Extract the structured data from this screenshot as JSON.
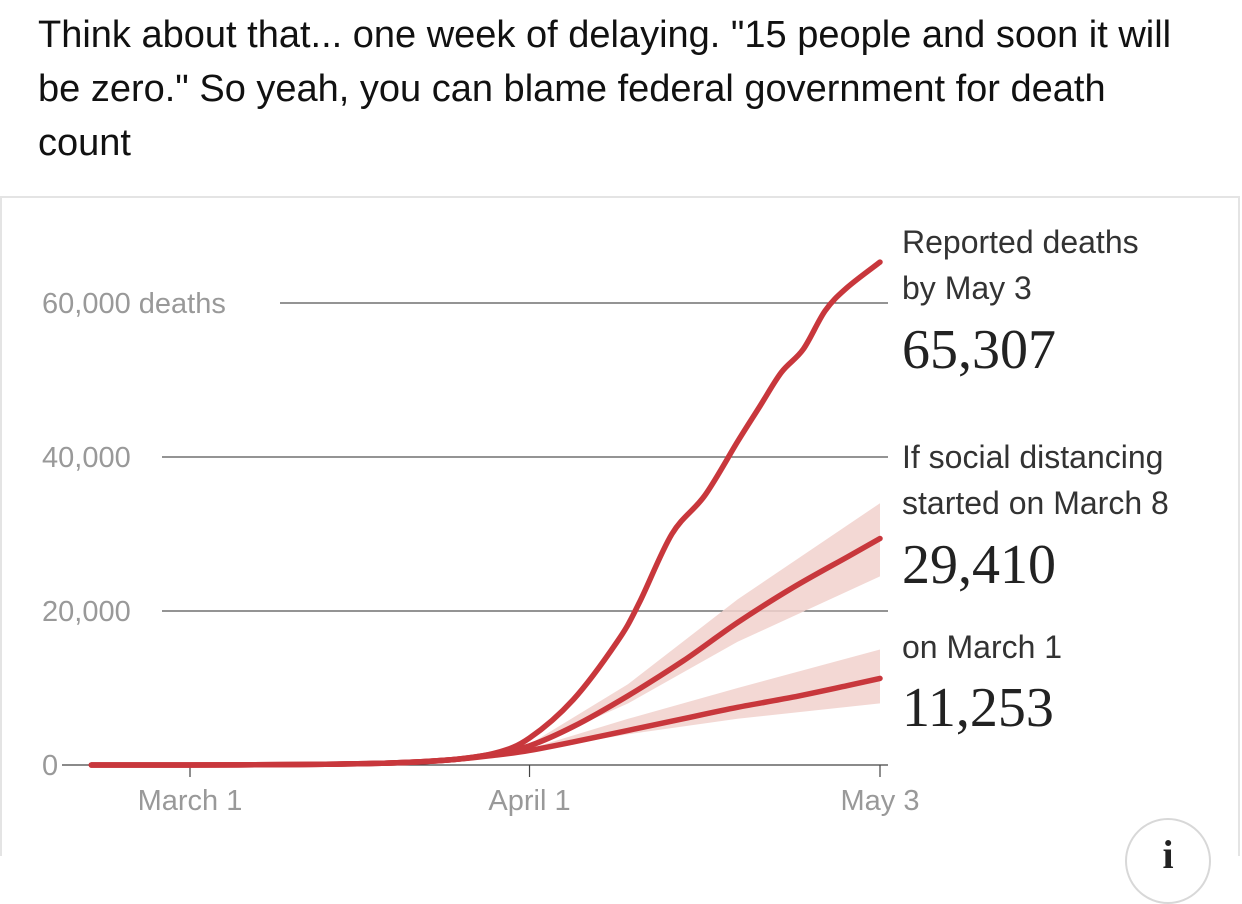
{
  "post": {
    "text": "Think about that... one week of delaying. \"15 people and soon it will be zero.\" So yeah, you can blame federal government for death count"
  },
  "info_button": {
    "icon": "info-icon",
    "label": "i"
  },
  "colors": {
    "series_line": "#c8373c",
    "band": "#f1d1cc",
    "gridline": "#555555",
    "tick_text": "#999999"
  },
  "chart_data": {
    "type": "line",
    "x_axis": {
      "ticks": [
        {
          "label": "March 1",
          "day": 0
        },
        {
          "label": "April 1",
          "day": 31
        },
        {
          "label": "May 3",
          "day": 63
        }
      ],
      "range_days": [
        -9,
        63
      ]
    },
    "y_axis": {
      "ticks": [
        {
          "label": "60,000 deaths",
          "value": 60000
        },
        {
          "label": "40,000",
          "value": 40000
        },
        {
          "label": "20,000",
          "value": 20000
        },
        {
          "label": "0",
          "value": 0
        }
      ],
      "ylim": [
        0,
        70000
      ]
    },
    "grid": true,
    "series": [
      {
        "name": "Reported deaths by May 3",
        "final_value": "65,307",
        "points": [
          [
            -9,
            0
          ],
          [
            0,
            0
          ],
          [
            10,
            60
          ],
          [
            18,
            250
          ],
          [
            24,
            700
          ],
          [
            28,
            1600
          ],
          [
            31,
            3500
          ],
          [
            35,
            8500
          ],
          [
            39,
            16000
          ],
          [
            41,
            21000
          ],
          [
            44,
            30000
          ],
          [
            47,
            35000
          ],
          [
            50,
            42000
          ],
          [
            52,
            46500
          ],
          [
            54,
            51000
          ],
          [
            56,
            54000
          ],
          [
            58,
            59000
          ],
          [
            60,
            62000
          ],
          [
            63,
            65307
          ]
        ]
      },
      {
        "name": "If social distancing started on March 8",
        "final_value": "29,410",
        "points": [
          [
            -9,
            0
          ],
          [
            0,
            0
          ],
          [
            10,
            60
          ],
          [
            18,
            250
          ],
          [
            24,
            700
          ],
          [
            28,
            1500
          ],
          [
            31,
            2500
          ],
          [
            35,
            5000
          ],
          [
            40,
            9000
          ],
          [
            45,
            13500
          ],
          [
            50,
            18500
          ],
          [
            55,
            23000
          ],
          [
            60,
            27000
          ],
          [
            63,
            29410
          ]
        ],
        "band_lower": [
          [
            24,
            700
          ],
          [
            31,
            2300
          ],
          [
            40,
            8000
          ],
          [
            50,
            16000
          ],
          [
            63,
            24500
          ]
        ],
        "band_upper": [
          [
            24,
            700
          ],
          [
            31,
            2700
          ],
          [
            40,
            10500
          ],
          [
            50,
            21500
          ],
          [
            63,
            34000
          ]
        ]
      },
      {
        "name": "on March 1",
        "final_value": "11,253",
        "points": [
          [
            -9,
            0
          ],
          [
            0,
            0
          ],
          [
            10,
            60
          ],
          [
            18,
            250
          ],
          [
            24,
            700
          ],
          [
            28,
            1300
          ],
          [
            31,
            1900
          ],
          [
            35,
            3000
          ],
          [
            40,
            4500
          ],
          [
            45,
            6000
          ],
          [
            50,
            7500
          ],
          [
            55,
            8800
          ],
          [
            60,
            10300
          ],
          [
            63,
            11253
          ]
        ],
        "band_lower": [
          [
            24,
            700
          ],
          [
            31,
            1800
          ],
          [
            40,
            4000
          ],
          [
            50,
            6000
          ],
          [
            63,
            8000
          ]
        ],
        "band_upper": [
          [
            24,
            700
          ],
          [
            31,
            2100
          ],
          [
            40,
            6000
          ],
          [
            50,
            10000
          ],
          [
            63,
            15000
          ]
        ]
      }
    ],
    "annotations": [
      {
        "lines": [
          "Reported deaths",
          "by May 3"
        ],
        "value": "65,307"
      },
      {
        "lines": [
          "If social distancing",
          "started on March 8"
        ],
        "value": "29,410"
      },
      {
        "lines": [
          "on March 1"
        ],
        "value": "11,253"
      }
    ]
  }
}
